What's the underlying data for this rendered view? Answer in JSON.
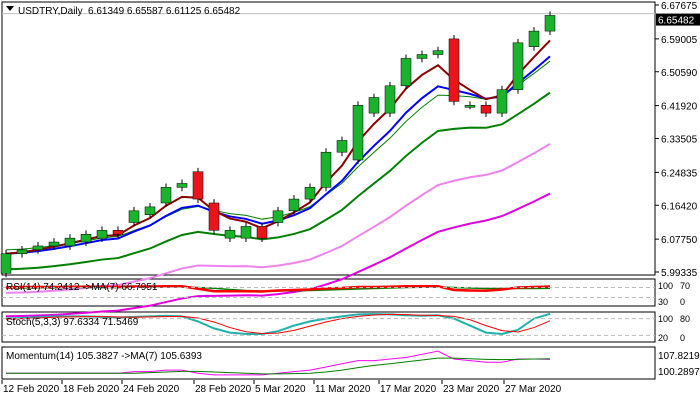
{
  "header": {
    "symbol": "USDTRY,Daily",
    "ohlc": "6.61349 6.65587 6.61125 6.65482"
  },
  "chart_data": {
    "type": "candlestick",
    "title": "USDTRY,Daily",
    "ylim": [
      5.99335,
      6.67675
    ],
    "price_ticks": [
      "6.67675",
      "6.59005",
      "6.50590",
      "6.41920",
      "6.33505",
      "6.24835",
      "6.16420",
      "6.07750",
      "5.99335"
    ],
    "current_price": "6.65482",
    "date_labels": [
      "12 Feb 2020",
      "18 Feb 2020",
      "24 Feb 2020",
      "28 Feb 2020",
      "5 Mar 2020",
      "11 Mar 2020",
      "17 Mar 2020",
      "23 Mar 2020",
      "27 Mar 2020"
    ],
    "candles": [
      [
        5.99,
        6.04
      ],
      [
        6.04,
        6.05
      ],
      [
        6.05,
        6.06
      ],
      [
        6.06,
        6.07
      ],
      [
        6.06,
        6.08
      ],
      [
        6.07,
        6.09
      ],
      [
        6.08,
        6.1
      ],
      [
        6.1,
        6.09
      ],
      [
        6.12,
        6.15
      ],
      [
        6.14,
        6.16
      ],
      [
        6.17,
        6.21
      ],
      [
        6.21,
        6.22
      ],
      [
        6.25,
        6.18
      ],
      [
        6.17,
        6.1
      ],
      [
        6.08,
        6.1
      ],
      [
        6.08,
        6.11
      ],
      [
        6.11,
        6.08
      ],
      [
        6.12,
        6.15
      ],
      [
        6.15,
        6.18
      ],
      [
        6.18,
        6.21
      ],
      [
        6.21,
        6.3
      ],
      [
        6.3,
        6.33
      ],
      [
        6.28,
        6.42
      ],
      [
        6.4,
        6.44
      ],
      [
        6.4,
        6.47
      ],
      [
        6.47,
        6.54
      ],
      [
        6.54,
        6.55
      ],
      [
        6.55,
        6.56
      ],
      [
        6.59,
        6.43
      ],
      [
        6.42,
        6.42
      ],
      [
        6.42,
        6.4
      ],
      [
        6.4,
        6.46
      ],
      [
        6.46,
        6.58
      ],
      [
        6.57,
        6.61
      ],
      [
        6.61,
        6.65
      ]
    ],
    "indicators": {
      "rsi": {
        "label": "RSI(14) 74.2412 ->MA(7) 66.7951",
        "levels": [
          "100",
          "70",
          "30",
          "0"
        ],
        "ylim": [
          0,
          100
        ],
        "values": [
          70,
          72,
          72,
          72,
          73,
          73,
          73,
          72,
          74,
          74,
          75,
          75,
          65,
          55,
          55,
          55,
          54,
          58,
          60,
          62,
          66,
          68,
          72,
          72,
          73,
          75,
          75,
          75,
          60,
          58,
          57,
          62,
          70,
          72,
          74
        ],
        "ma": [
          68,
          68,
          69,
          69,
          70,
          70,
          70,
          70,
          71,
          71,
          72,
          72,
          70,
          67,
          62,
          58,
          56,
          56,
          57,
          58,
          60,
          62,
          64,
          66,
          68,
          70,
          71,
          72,
          70,
          68,
          66,
          66,
          66,
          66,
          67
        ]
      },
      "stoch": {
        "label": "Stoch(5,3,3) 97.6334 71.5469",
        "levels": [
          "100",
          "80",
          "20",
          "0"
        ],
        "ylim": [
          0,
          100
        ],
        "values": [
          80,
          82,
          85,
          88,
          88,
          88,
          86,
          84,
          86,
          88,
          90,
          88,
          70,
          45,
          30,
          25,
          25,
          35,
          55,
          70,
          80,
          88,
          95,
          96,
          95,
          92,
          90,
          92,
          80,
          55,
          30,
          25,
          40,
          80,
          97
        ],
        "signal": [
          78,
          80,
          82,
          85,
          86,
          87,
          87,
          86,
          85,
          86,
          87,
          88,
          82,
          68,
          48,
          33,
          27,
          28,
          38,
          53,
          68,
          80,
          88,
          93,
          95,
          94,
          92,
          91,
          88,
          76,
          55,
          37,
          32,
          48,
          72
        ]
      },
      "momentum": {
        "label": "Momentum(14) 105.3827  ->MA(7) 105.6393",
        "ticks": [
          "107.8219",
          "100.2897"
        ],
        "ylim": [
          99.5,
          109
        ],
        "values": [
          101,
          101,
          101,
          101,
          101,
          101,
          101,
          101,
          101.5,
          101.5,
          102,
          102,
          101,
          100.5,
          100.5,
          100.5,
          100.5,
          101,
          101.5,
          102,
          103,
          104,
          105,
          105,
          105.5,
          106,
          107,
          108,
          105.5,
          105,
          104.5,
          104.5,
          105.5,
          105.5,
          105.4
        ],
        "ma": [
          101,
          101,
          101,
          101,
          101,
          101,
          101,
          101,
          101,
          101.2,
          101.4,
          101.6,
          101.6,
          101.4,
          101.2,
          101,
          100.8,
          100.8,
          100.9,
          101,
          101.4,
          102,
          102.8,
          103.5,
          104,
          104.6,
          105.2,
          105.8,
          105.8,
          105.6,
          105.4,
          105.3,
          105.4,
          105.5,
          105.6
        ]
      }
    }
  },
  "colors": {
    "up": "#19b42b",
    "down": "#e8151b",
    "ma_short": "#8b0000",
    "ma_mid": "#0000ff",
    "ma_long": "#008000",
    "ma_slow": "#ee82ee",
    "ma_slowest": "#e000e0"
  }
}
